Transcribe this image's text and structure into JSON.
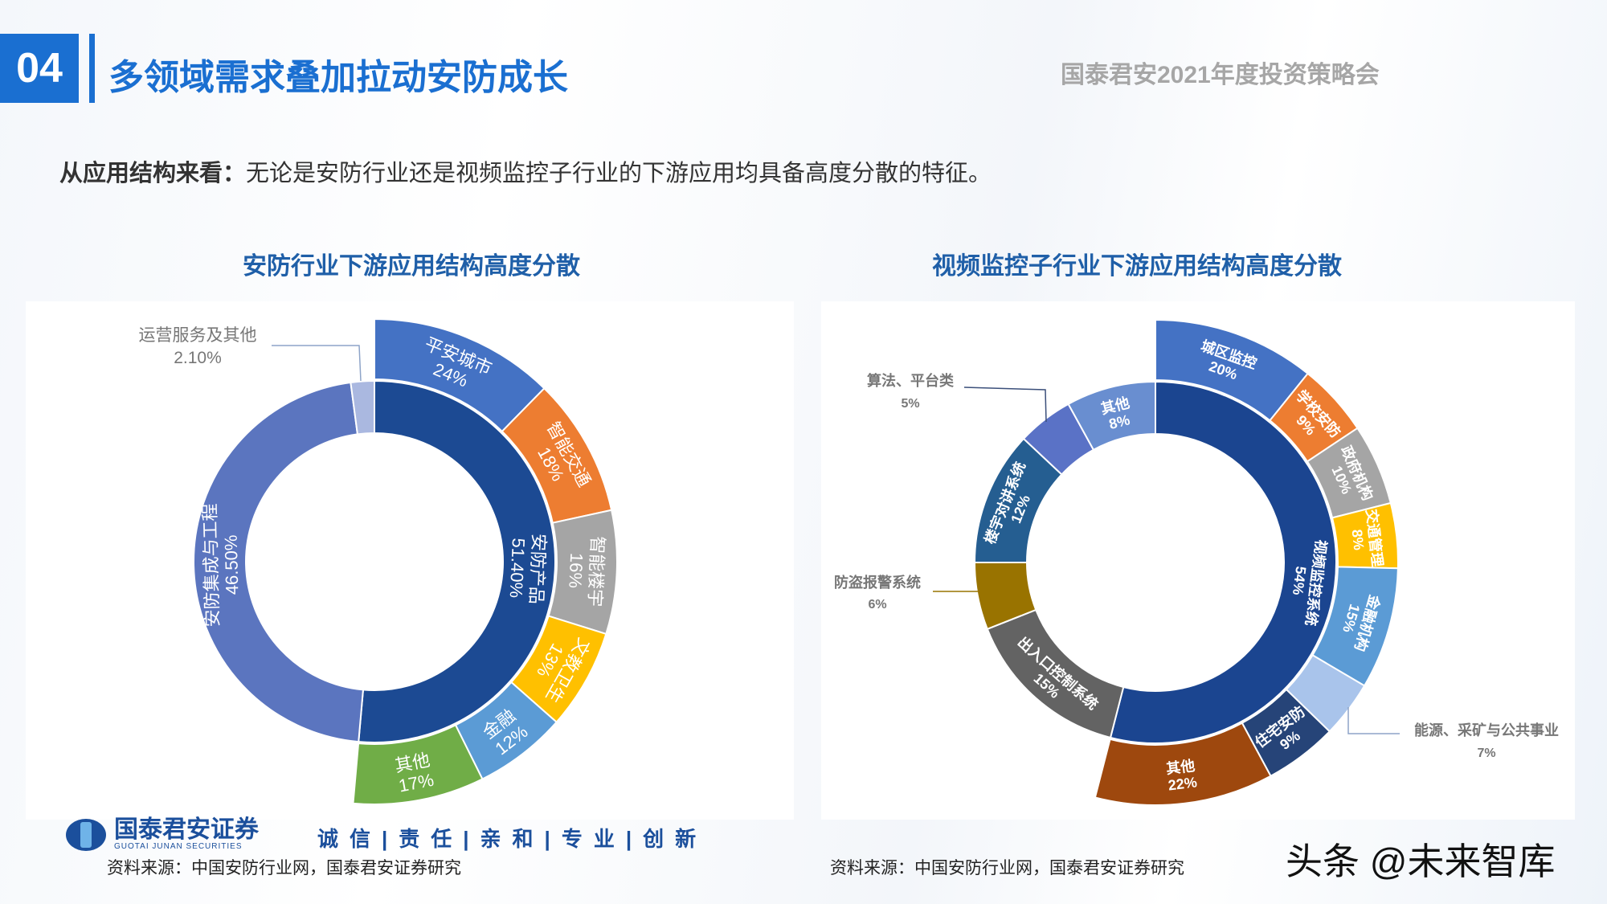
{
  "header": {
    "section_number": "04",
    "title": "多领域需求叠加拉动安防成长",
    "event": "国泰君安2021年度投资策略会"
  },
  "subtitle": {
    "lead": "从应用结构来看：",
    "text": "无论是安防行业还是视频监控子行业的下游应用均具备高度分散的特征。"
  },
  "chart_data": [
    {
      "type": "sunburst-donut",
      "title": "安防行业下游应用结构高度分散",
      "inner": [
        {
          "name": "安防产品",
          "pct": "51.40%",
          "value": 51.4,
          "color": "#1c4a93"
        },
        {
          "name": "安防集成与工程",
          "pct": "46.50%",
          "value": 46.5,
          "color": "#5b75bf"
        },
        {
          "name": "运营服务及其他",
          "pct": "2.10%",
          "value": 2.1,
          "color": "#aab8e0",
          "callout": true
        }
      ],
      "outer_parent": "安防产品",
      "outer": [
        {
          "name": "平安城市",
          "pct": "24%",
          "value": 24,
          "color": "#4472c4"
        },
        {
          "name": "智能交通",
          "pct": "18%",
          "value": 18,
          "color": "#ed7d31"
        },
        {
          "name": "智能楼宇",
          "pct": "16%",
          "value": 16,
          "color": "#a5a5a5"
        },
        {
          "name": "文教卫生",
          "pct": "13%",
          "value": 13,
          "color": "#ffc000"
        },
        {
          "name": "金融",
          "pct": "12%",
          "value": 12,
          "color": "#5b9bd5"
        },
        {
          "name": "其他",
          "pct": "17%",
          "value": 17,
          "color": "#70ad47"
        }
      ]
    },
    {
      "type": "sunburst-donut",
      "title": "视频监控子行业下游应用结构高度分散",
      "inner": [
        {
          "name": "视频监控系统",
          "pct": "54%",
          "value": 54,
          "color": "#1b4590"
        },
        {
          "name": "出入口控制系统",
          "pct": "15%",
          "value": 15,
          "color": "#636363"
        },
        {
          "name": "防盗报警系统",
          "pct": "6%",
          "value": 6,
          "color": "#997300",
          "callout": true
        },
        {
          "name": "楼宇对讲系统",
          "pct": "12%",
          "value": 12,
          "color": "#255e91"
        },
        {
          "name": "算法、平台类",
          "pct": "5%",
          "value": 5,
          "color": "#5a72c6",
          "callout": true
        },
        {
          "name": "其他",
          "pct": "8%",
          "value": 8,
          "color": "#698ed0"
        }
      ],
      "outer_parent": "视频监控系统",
      "outer": [
        {
          "name": "城区监控",
          "pct": "20%",
          "value": 20,
          "color": "#4472c4"
        },
        {
          "name": "学校安防",
          "pct": "9%",
          "value": 9,
          "color": "#ed7d31"
        },
        {
          "name": "政府机构",
          "pct": "10%",
          "value": 10,
          "color": "#a5a5a5"
        },
        {
          "name": "交通管理",
          "pct": "8%",
          "value": 8,
          "color": "#ffc000"
        },
        {
          "name": "金融机构",
          "pct": "15%",
          "value": 15,
          "color": "#5b9bd5"
        },
        {
          "name": "能源、采矿与公共事业",
          "pct": "7%",
          "value": 7,
          "color": "#a9c4eb",
          "callout": true
        },
        {
          "name": "住宅安防",
          "pct": "9%",
          "value": 9,
          "color": "#264478"
        },
        {
          "name": "其他",
          "pct": "22%",
          "value": 22,
          "color": "#9e480e"
        }
      ]
    }
  ],
  "sources": {
    "left": "资料来源：中国安防行业网，国泰君安证券研究",
    "right": "资料来源：中国安防行业网，国泰君安证券研究"
  },
  "footer": {
    "logo_cn": "国泰君安证券",
    "logo_en": "GUOTAI JUNAN SECURITIES",
    "slogan": "诚信|责任|亲和|专业|创新"
  },
  "watermark": "头条 @未来智库"
}
